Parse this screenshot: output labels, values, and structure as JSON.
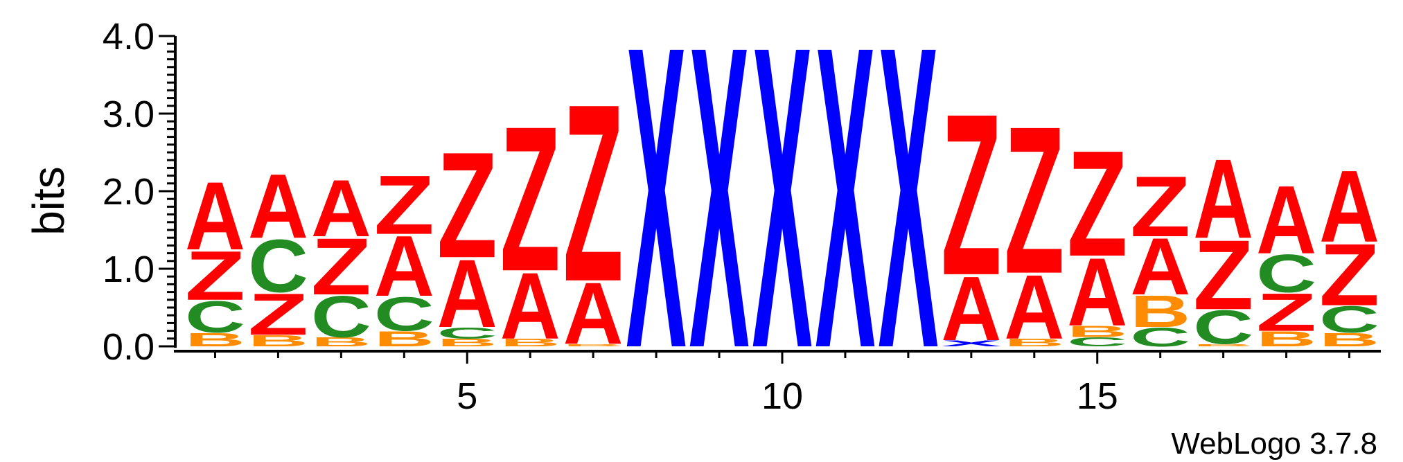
{
  "chart_data": {
    "type": "sequence-logo",
    "ylabel": "bits",
    "ylim": [
      0,
      4.0
    ],
    "y_ticks": [
      "0.0",
      "1.0",
      "2.0",
      "3.0",
      "4.0"
    ],
    "x_ticks": [
      5,
      10,
      15
    ],
    "x_tick_labels": [
      "5",
      "10",
      "15"
    ],
    "credit": "WebLogo 3.7.8",
    "colors": {
      "A": "#ff0000",
      "Z": "#ff0000",
      "X": "#0000ff",
      "C": "#228b22",
      "B": "#ff8c00"
    },
    "positions": [
      {
        "pos": 1,
        "stack": [
          {
            "l": "B",
            "h": 0.18
          },
          {
            "l": "C",
            "h": 0.42
          },
          {
            "l": "Z",
            "h": 0.65
          },
          {
            "l": "A",
            "h": 0.9
          }
        ]
      },
      {
        "pos": 2,
        "stack": [
          {
            "l": "B",
            "h": 0.15
          },
          {
            "l": "Z",
            "h": 0.55
          },
          {
            "l": "C",
            "h": 0.7
          },
          {
            "l": "A",
            "h": 0.85
          }
        ]
      },
      {
        "pos": 3,
        "stack": [
          {
            "l": "B",
            "h": 0.12
          },
          {
            "l": "C",
            "h": 0.55
          },
          {
            "l": "Z",
            "h": 0.75
          },
          {
            "l": "A",
            "h": 0.75
          }
        ]
      },
      {
        "pos": 4,
        "stack": [
          {
            "l": "B",
            "h": 0.2
          },
          {
            "l": "C",
            "h": 0.45
          },
          {
            "l": "A",
            "h": 0.8
          },
          {
            "l": "Z",
            "h": 0.78
          }
        ]
      },
      {
        "pos": 5,
        "stack": [
          {
            "l": "B",
            "h": 0.1
          },
          {
            "l": "C",
            "h": 0.15
          },
          {
            "l": "A",
            "h": 0.9
          },
          {
            "l": "Z",
            "h": 1.4
          }
        ]
      },
      {
        "pos": 6,
        "stack": [
          {
            "l": "B",
            "h": 0.1
          },
          {
            "l": "A",
            "h": 0.88
          },
          {
            "l": "Z",
            "h": 1.92
          }
        ]
      },
      {
        "pos": 7,
        "stack": [
          {
            "l": "B",
            "h": 0.03
          },
          {
            "l": "A",
            "h": 0.82
          },
          {
            "l": "Z",
            "h": 2.35
          }
        ]
      },
      {
        "pos": 8,
        "stack": [
          {
            "l": "X",
            "h": 4.0
          }
        ]
      },
      {
        "pos": 9,
        "stack": [
          {
            "l": "X",
            "h": 4.0
          }
        ]
      },
      {
        "pos": 10,
        "stack": [
          {
            "l": "X",
            "h": 4.0
          }
        ]
      },
      {
        "pos": 11,
        "stack": [
          {
            "l": "X",
            "h": 4.0
          }
        ]
      },
      {
        "pos": 12,
        "stack": [
          {
            "l": "X",
            "h": 4.0
          }
        ]
      },
      {
        "pos": 13,
        "stack": [
          {
            "l": "X",
            "h": 0.08
          },
          {
            "l": "A",
            "h": 0.85
          },
          {
            "l": "Z",
            "h": 2.14
          }
        ]
      },
      {
        "pos": 14,
        "stack": [
          {
            "l": "B",
            "h": 0.1
          },
          {
            "l": "A",
            "h": 0.85
          },
          {
            "l": "Z",
            "h": 1.95
          }
        ]
      },
      {
        "pos": 15,
        "stack": [
          {
            "l": "C",
            "h": 0.12
          },
          {
            "l": "B",
            "h": 0.15
          },
          {
            "l": "A",
            "h": 0.9
          },
          {
            "l": "Z",
            "h": 1.4
          }
        ]
      },
      {
        "pos": 16,
        "stack": [
          {
            "l": "C",
            "h": 0.25
          },
          {
            "l": "B",
            "h": 0.42
          },
          {
            "l": "A",
            "h": 0.75
          },
          {
            "l": "Z",
            "h": 0.8
          }
        ]
      },
      {
        "pos": 17,
        "stack": [
          {
            "l": "B",
            "h": 0.03
          },
          {
            "l": "C",
            "h": 0.45
          },
          {
            "l": "Z",
            "h": 0.92
          },
          {
            "l": "A",
            "h": 1.05
          }
        ]
      },
      {
        "pos": 18,
        "stack": [
          {
            "l": "B",
            "h": 0.2
          },
          {
            "l": "Z",
            "h": 0.5
          },
          {
            "l": "C",
            "h": 0.5
          },
          {
            "l": "A",
            "h": 0.9
          }
        ]
      },
      {
        "pos": 19,
        "stack": [
          {
            "l": "B",
            "h": 0.18
          },
          {
            "l": "C",
            "h": 0.35
          },
          {
            "l": "Z",
            "h": 0.82
          },
          {
            "l": "A",
            "h": 0.95
          }
        ]
      }
    ]
  }
}
